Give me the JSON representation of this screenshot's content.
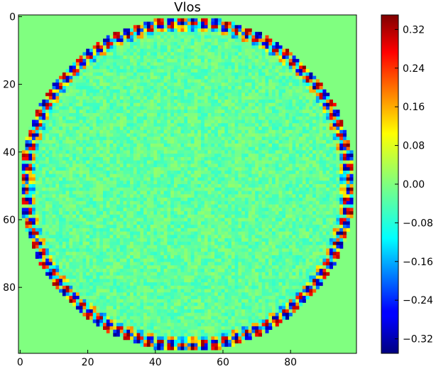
{
  "chart_data": {
    "type": "heatmap",
    "title": "Vlos",
    "xlabel": "",
    "ylabel": "",
    "grid_size": [
      100,
      100
    ],
    "x_range": [
      0,
      99
    ],
    "y_range": [
      0,
      99
    ],
    "y_axis": "inverted (0 at top)",
    "x_ticks": [
      0,
      20,
      40,
      60,
      80
    ],
    "y_ticks": [
      0,
      20,
      40,
      60,
      80
    ],
    "colormap": "jet",
    "clim": [
      -0.35,
      0.35
    ],
    "colorbar_ticks": [
      -0.32,
      -0.24,
      -0.16,
      -0.08,
      0.0,
      0.08,
      0.16,
      0.24,
      0.32
    ],
    "colorbar_tick_labels": [
      "−0.32",
      "−0.24",
      "−0.16",
      "−0.08",
      "0.00",
      "0.08",
      "0.16",
      "0.24",
      "0.32"
    ],
    "background_value": 0.0,
    "disk": {
      "center": [
        49.5,
        49.5
      ],
      "radius": 49,
      "interior_value_range": [
        -0.06,
        0.04
      ],
      "rim_value_range": [
        -0.35,
        0.35
      ],
      "rim_pattern": "alternating positive/negative dashes (red-yellow vs blue-cyan) around circumference"
    }
  },
  "colors": {
    "background": "#ffffff",
    "axis": "#000000"
  }
}
